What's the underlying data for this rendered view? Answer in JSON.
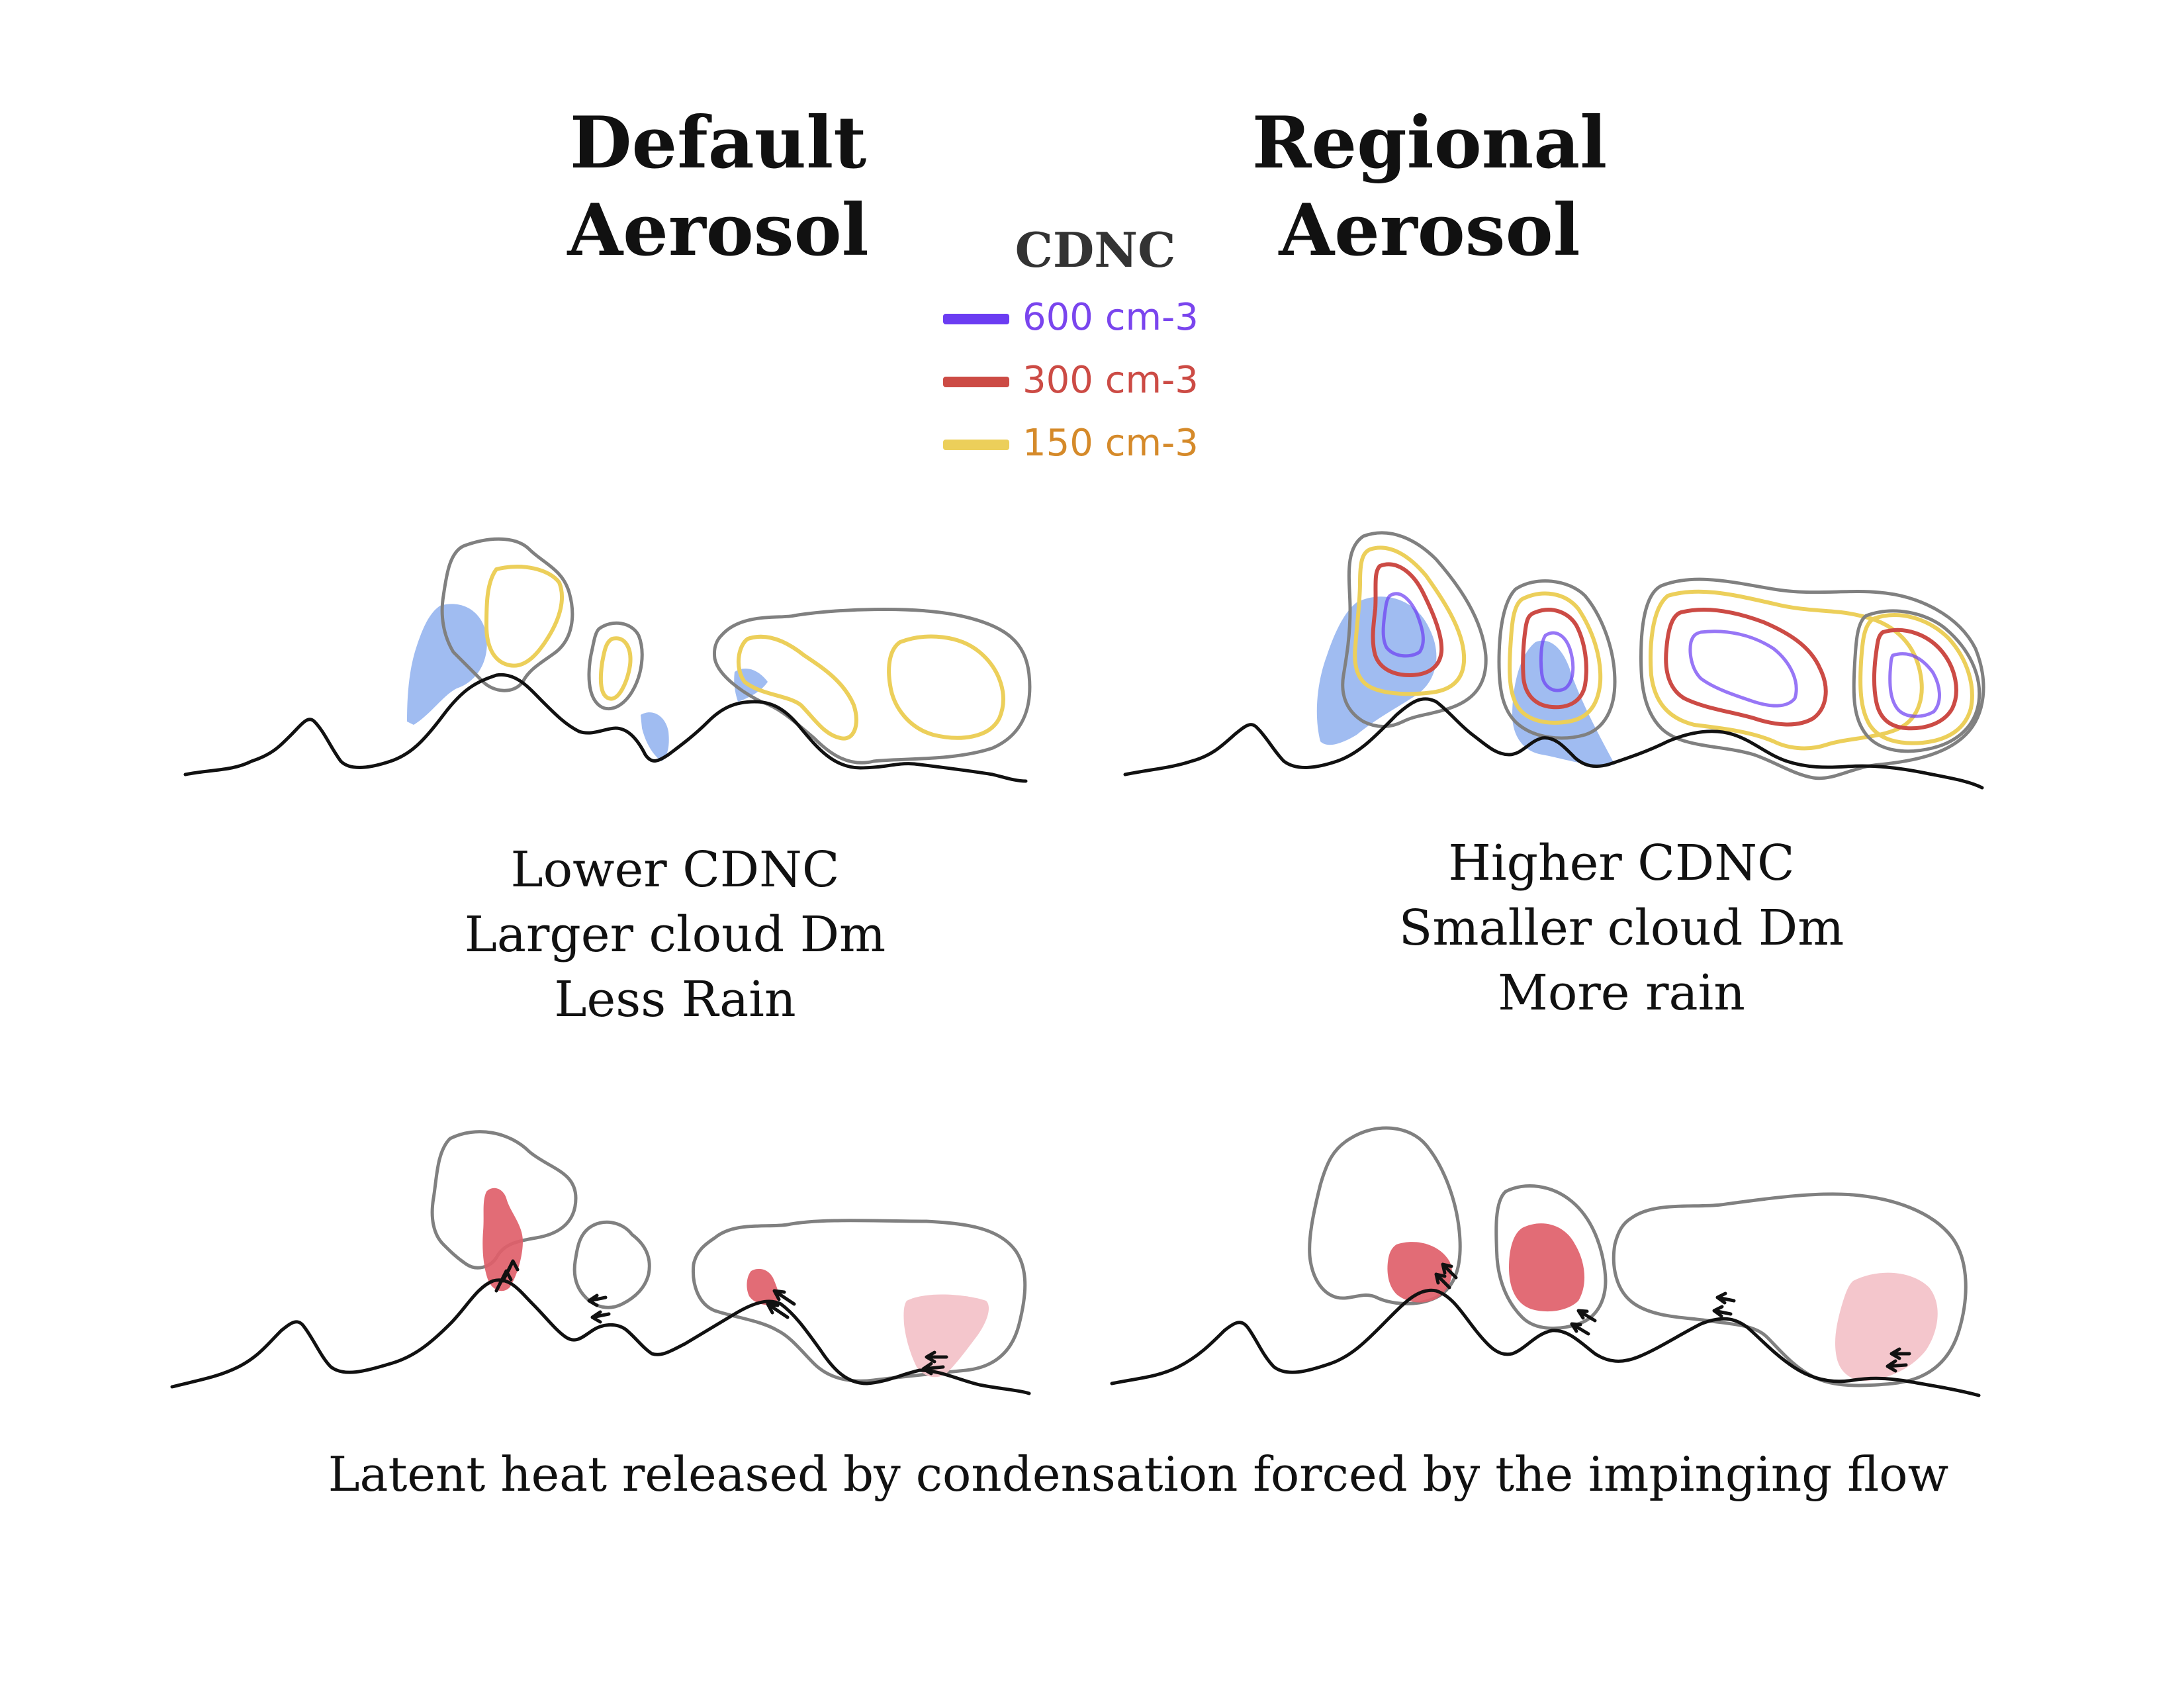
{
  "titles": {
    "default": [
      "Default",
      "Aerosol"
    ],
    "regional": [
      "Regional",
      "Aerosol"
    ]
  },
  "legend": {
    "title": "CDNC",
    "items": [
      {
        "label": "600 cm-3",
        "color": "#6b3cf2",
        "text_color": "#7a45ee"
      },
      {
        "label": "300 cm-3",
        "color": "#cc4b45",
        "text_color": "#cc4b45"
      },
      {
        "label": "150 cm-3",
        "color": "#eccf5a",
        "text_color": "#d58a2a"
      }
    ]
  },
  "captions": {
    "default": [
      "Lower CDNC",
      "Larger cloud Dm",
      "Less Rain"
    ],
    "regional": [
      "Higher CDNC",
      "Smaller cloud Dm",
      "More rain"
    ]
  },
  "bottom_caption": "Latent heat released by condensation forced by the impinging flow",
  "colors": {
    "terrain": "#111111",
    "cloud_outline": "#808080",
    "rain": "#8fb0ef",
    "latent_heat_strong": "#e0606a",
    "latent_heat_weak": "#f3c3c9",
    "flow_arrow": "#111111"
  }
}
